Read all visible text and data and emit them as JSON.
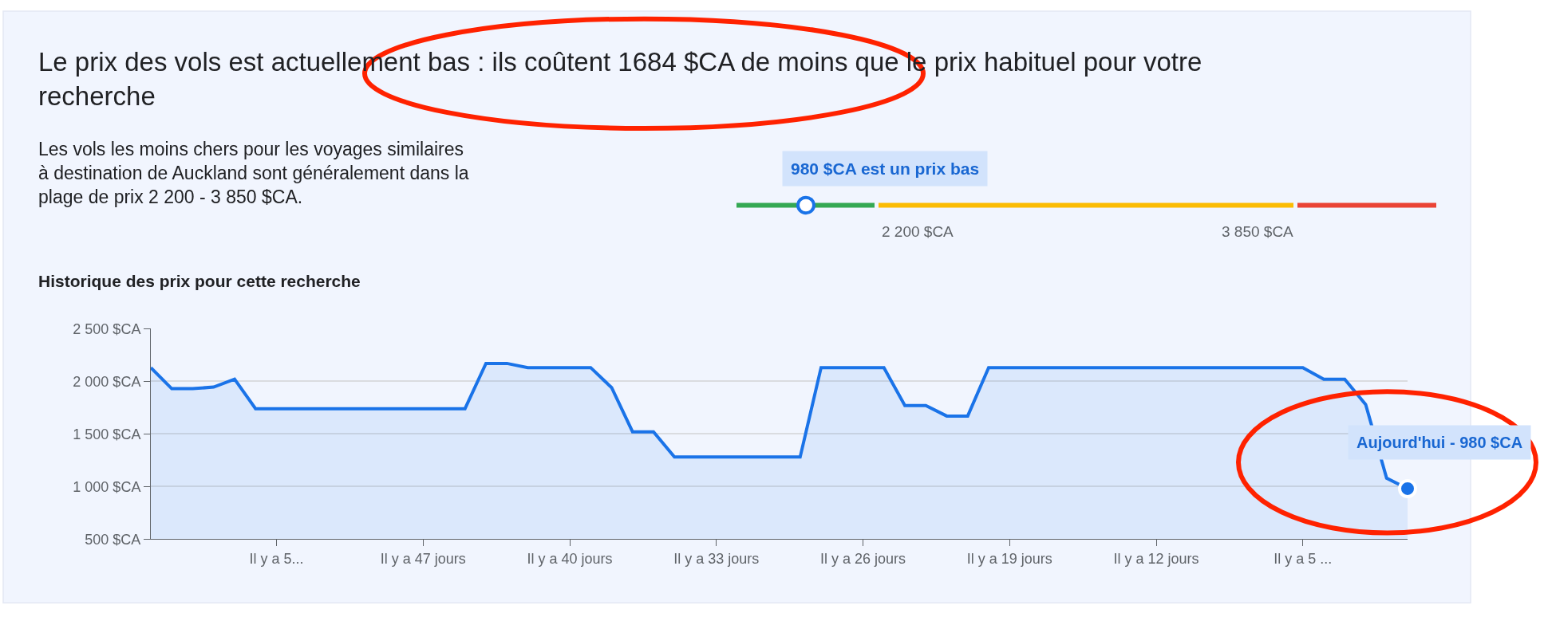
{
  "chart_data": [
    {
      "type": "other",
      "title": "Le prix des vols est actuellement bas : ils coûtent 1684 $CA de moins que le prix habituel pour votre recherche",
      "subtitle": "Les vols les moins chers pour les voyages similaires à destination de Auckland sont généralement dans la plage de prix 2 200 - 3 850 $CA.",
      "annotations": [
        "980 $CA est un prix bas",
        "2 200 $CA",
        "3 850 $CA"
      ]
    },
    {
      "type": "area",
      "title": "Historique des prix pour cette recherche",
      "categories": [
        null,
        null,
        null,
        null,
        null,
        null,
        "Il y a 5...",
        null,
        null,
        null,
        null,
        null,
        null,
        "Il y a 47 jours",
        null,
        null,
        null,
        null,
        null,
        null,
        "Il y a 40 jours",
        null,
        null,
        null,
        null,
        null,
        null,
        "Il y a 33 jours",
        null,
        null,
        null,
        null,
        null,
        null,
        "Il y a 26 jours",
        null,
        null,
        null,
        null,
        null,
        null,
        "Il y a 19 jours",
        null,
        null,
        null,
        null,
        null,
        null,
        "Il y a 12 jours",
        null,
        null,
        null,
        null,
        null,
        null,
        "Il y a 5 ...",
        null,
        null,
        null,
        null,
        null
      ],
      "series": [
        {
          "color": "#1a73e8",
          "values": [
            2130,
            1930,
            1930,
            1945,
            2020,
            1740,
            1740,
            1740,
            1740,
            1740,
            1740,
            1740,
            1740,
            1740,
            1740,
            1740,
            2170,
            2170,
            2130,
            2130,
            2130,
            2130,
            1940,
            1520,
            1520,
            1280,
            1280,
            1280,
            1280,
            1280,
            1280,
            1280,
            2130,
            2130,
            2130,
            2130,
            1770,
            1770,
            1670,
            1670,
            2130,
            2130,
            2130,
            2130,
            2130,
            2130,
            2130,
            2130,
            2130,
            2130,
            2130,
            2130,
            2130,
            2130,
            2130,
            2130,
            2020,
            2020,
            1780,
            1080,
            980
          ]
        }
      ],
      "ylim": [
        500,
        2500
      ],
      "yticks": [
        {
          "value": 500,
          "label": "500 $CA"
        },
        {
          "value": 1000,
          "label": "1 000 $CA"
        },
        {
          "value": 1500,
          "label": "1 500 $CA"
        },
        {
          "value": 2000,
          "label": "2 000 $CA"
        },
        {
          "value": 2500,
          "label": "2 500 $CA"
        }
      ],
      "grid": "y",
      "annotations": [
        "Aujourd'hui - 980 $CA"
      ]
    }
  ]
}
